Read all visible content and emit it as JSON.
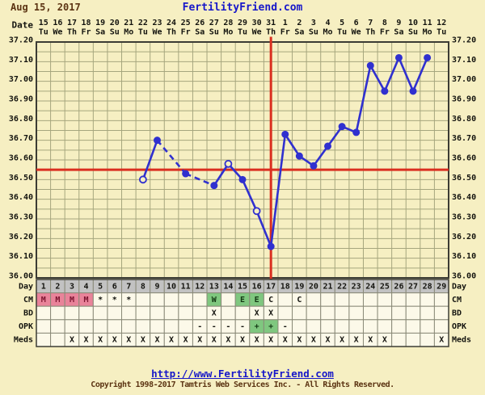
{
  "header": {
    "chart_date": "Aug 15, 2017",
    "brand": "FertilityFriend.com"
  },
  "footer": {
    "url": "http://www.FertilityFriend.com",
    "copyright": "Copyright 1998-2017 Tamtris Web Services Inc. - All Rights Reserved."
  },
  "colors": {
    "background": "#f6efc2",
    "grid": "#a6a67e",
    "plot_border": "#3c3c34",
    "red": "#da2f20",
    "blue": "#3030cf",
    "menses_pink": "#e9839a",
    "fertile_green": "#7fc77f",
    "day_row_gray": "#c2c2c2",
    "cell_cream": "#fcf9e9",
    "cell_border": "#8a8a78",
    "text_dark": "#14140f",
    "menses_text": "#7c1430",
    "fertile_text": "#143814"
  },
  "chart_data": {
    "type": "line",
    "series_name": "basal body temperature (Celsius)",
    "x": {
      "label": "Date",
      "dates": [
        "15",
        "16",
        "17",
        "18",
        "19",
        "20",
        "21",
        "22",
        "23",
        "24",
        "25",
        "26",
        "27",
        "28",
        "29",
        "30",
        "31",
        "1",
        "2",
        "3",
        "4",
        "5",
        "6",
        "7",
        "8",
        "9",
        "10",
        "11",
        "12"
      ],
      "weekdays": [
        "Tu",
        "We",
        "Th",
        "Fr",
        "Sa",
        "Su",
        "Mo",
        "Tu",
        "We",
        "Th",
        "Fr",
        "Sa",
        "Su",
        "Mo",
        "Tu",
        "We",
        "Th",
        "Fr",
        "Sa",
        "Su",
        "Mo",
        "Tu",
        "We",
        "Th",
        "Fr",
        "Sa",
        "Su",
        "Mo",
        "Tu"
      ]
    },
    "y": {
      "min": 36.0,
      "max": 37.2,
      "tick_step": 0.1,
      "grid_step": 0.05,
      "tick_labels": [
        "37.20",
        "37.10",
        "37.00",
        "36.90",
        "36.80",
        "36.70",
        "36.60",
        "36.50",
        "36.40",
        "36.30",
        "36.20",
        "36.10",
        "36.00"
      ]
    },
    "coverline": 36.55,
    "ovulation_cycle_day": 17,
    "points": [
      {
        "day": 8,
        "temp": 36.5,
        "open": true
      },
      {
        "day": 9,
        "temp": 36.7,
        "open": false
      },
      {
        "day": 11,
        "temp": 36.53,
        "open": false
      },
      {
        "day": 13,
        "temp": 36.47,
        "open": false
      },
      {
        "day": 14,
        "temp": 36.58,
        "open": true
      },
      {
        "day": 15,
        "temp": 36.5,
        "open": false
      },
      {
        "day": 16,
        "temp": 36.34,
        "open": true
      },
      {
        "day": 17,
        "temp": 36.16,
        "open": false
      },
      {
        "day": 18,
        "temp": 36.73,
        "open": false
      },
      {
        "day": 19,
        "temp": 36.62,
        "open": false
      },
      {
        "day": 20,
        "temp": 36.57,
        "open": false
      },
      {
        "day": 21,
        "temp": 36.67,
        "open": false
      },
      {
        "day": 22,
        "temp": 36.77,
        "open": false
      },
      {
        "day": 23,
        "temp": 36.74,
        "open": false
      },
      {
        "day": 24,
        "temp": 37.08,
        "open": false
      },
      {
        "day": 25,
        "temp": 36.95,
        "open": false
      },
      {
        "day": 26,
        "temp": 37.12,
        "open": false
      },
      {
        "day": 27,
        "temp": 36.95,
        "open": false
      },
      {
        "day": 28,
        "temp": 37.12,
        "open": false
      }
    ],
    "rows": [
      {
        "label": "Day",
        "cells": [
          "1",
          "2",
          "3",
          "4",
          "5",
          "6",
          "7",
          "8",
          "9",
          "10",
          "11",
          "12",
          "13",
          "14",
          "15",
          "16",
          "17",
          "18",
          "19",
          "20",
          "21",
          "22",
          "23",
          "24",
          "25",
          "26",
          "27",
          "28",
          "29"
        ]
      },
      {
        "label": "CM",
        "cells": [
          "M",
          "M",
          "M",
          "M",
          "*",
          "*",
          "*",
          "",
          "",
          "",
          "",
          "",
          "W",
          "",
          "E",
          "E",
          "C",
          "",
          "C",
          "",
          "",
          "",
          "",
          "",
          "",
          "",
          "",
          "",
          ""
        ]
      },
      {
        "label": "BD",
        "cells": [
          "",
          "",
          "",
          "",
          "",
          "",
          "",
          "",
          "",
          "",
          "",
          "",
          "X",
          "",
          "",
          "X",
          "X",
          "",
          "",
          "",
          "",
          "",
          "",
          "",
          "",
          "",
          "",
          "",
          ""
        ]
      },
      {
        "label": "OPK",
        "cells": [
          "",
          "",
          "",
          "",
          "",
          "",
          "",
          "",
          "",
          "",
          "",
          "-",
          "-",
          "-",
          "-",
          "+",
          "+",
          "-",
          "",
          "",
          "",
          "",
          "",
          "",
          "",
          "",
          "",
          "",
          ""
        ]
      },
      {
        "label": "Meds",
        "cells": [
          "",
          "",
          "X",
          "X",
          "X",
          "X",
          "X",
          "X",
          "X",
          "X",
          "X",
          "X",
          "X",
          "X",
          "X",
          "X",
          "X",
          "X",
          "X",
          "X",
          "X",
          "X",
          "X",
          "X",
          "X",
          "",
          "",
          "",
          "X"
        ]
      }
    ]
  }
}
